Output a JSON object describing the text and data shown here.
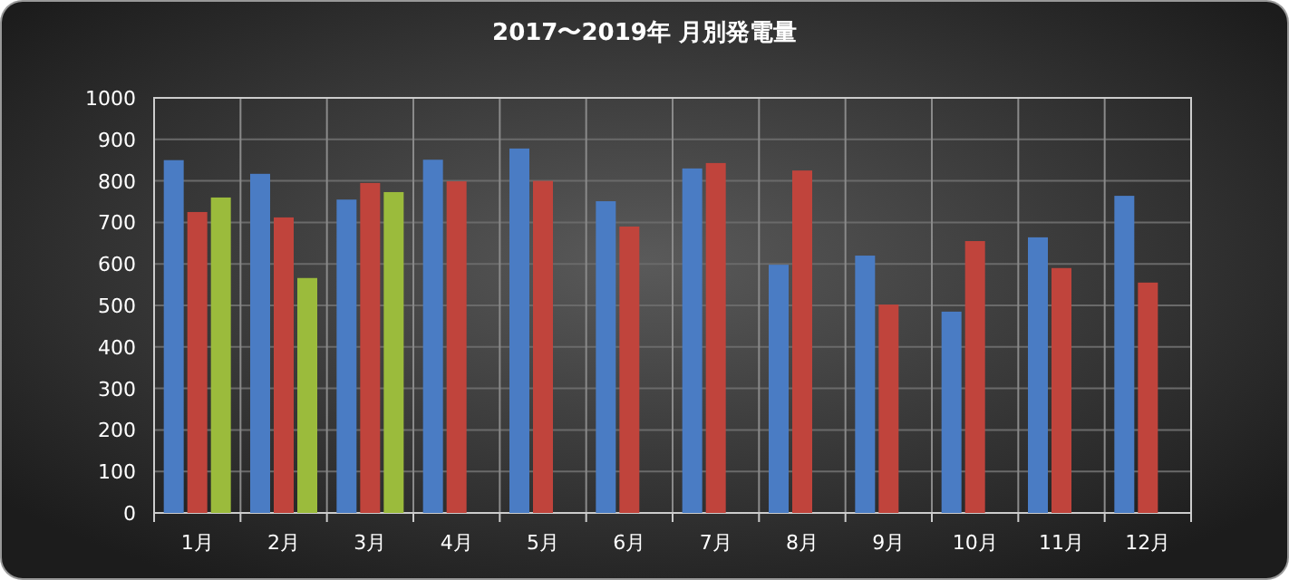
{
  "chart_data": {
    "type": "bar",
    "title": "2017〜2019年 月別発電量",
    "categories": [
      "1月",
      "2月",
      "3月",
      "4月",
      "5月",
      "6月",
      "7月",
      "8月",
      "9月",
      "10月",
      "11月",
      "12月"
    ],
    "series": [
      {
        "color": "#4a7cc4",
        "values": [
          850,
          817,
          755,
          851,
          878,
          751,
          830,
          598,
          620,
          485,
          664,
          764
        ]
      },
      {
        "color": "#c0443c",
        "values": [
          725,
          712,
          795,
          799,
          800,
          690,
          843,
          825,
          502,
          655,
          590,
          555
        ]
      },
      {
        "color": "#9bbb3c",
        "values": [
          760,
          566,
          773,
          null,
          null,
          null,
          null,
          null,
          null,
          null,
          null,
          null
        ]
      }
    ],
    "ylim": [
      0,
      1000
    ],
    "yticks": [
      0,
      100,
      200,
      300,
      400,
      500,
      600,
      700,
      800,
      900,
      1000
    ],
    "grid": true
  }
}
